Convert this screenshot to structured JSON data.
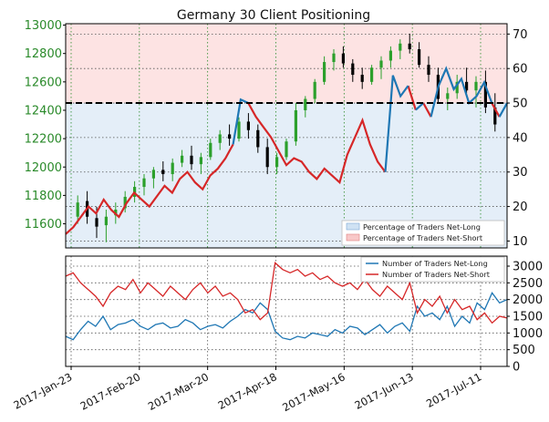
{
  "chart_data": [
    {
      "type": "candlestick-area",
      "title": "Germany 30 Client Positioning",
      "x_tick_labels": [
        "2017-Jan-23",
        "2017-Feb-20",
        "2017-Mar-20",
        "2017-Apr-18",
        "2017-May-16",
        "2017-Jun-13",
        "2017-Jul-11"
      ],
      "left_axis": {
        "ticks": [
          11600,
          11800,
          12000,
          12200,
          12400,
          12600,
          12800,
          13000
        ],
        "range": [
          11430,
          13010
        ],
        "color": "#2a8a2a"
      },
      "right_axis": {
        "ticks": [
          10,
          20,
          30,
          40,
          50,
          60,
          70
        ],
        "range": [
          8,
          73
        ]
      },
      "reference_line": 50,
      "legend": {
        "net_long": "Percentage of Traders Net-Long",
        "net_short": "Percentage of Traders Net-Short"
      },
      "colors": {
        "net_long": "#1f77b4",
        "net_short": "#d62728",
        "candle_up": "#2ca02c",
        "candle_down": "#000000"
      },
      "ohlc_samples": [
        [
          11650,
          11800,
          11600,
          11750
        ],
        [
          11760,
          11830,
          11600,
          11650
        ],
        [
          11640,
          11720,
          11500,
          11580
        ],
        [
          11590,
          11700,
          11470,
          11650
        ],
        [
          11660,
          11750,
          11600,
          11700
        ],
        [
          11710,
          11830,
          11680,
          11790
        ],
        [
          11790,
          11900,
          11750,
          11860
        ],
        [
          11860,
          11950,
          11800,
          11920
        ],
        [
          11920,
          12000,
          11850,
          11980
        ],
        [
          11980,
          12040,
          11900,
          11950
        ],
        [
          11950,
          12060,
          11900,
          12030
        ],
        [
          12030,
          12120,
          12000,
          12080
        ],
        [
          12080,
          12150,
          11980,
          12020
        ],
        [
          12020,
          12100,
          11950,
          12070
        ],
        [
          12070,
          12200,
          12050,
          12170
        ],
        [
          12170,
          12260,
          12120,
          12230
        ],
        [
          12230,
          12300,
          12150,
          12200
        ],
        [
          12200,
          12350,
          12180,
          12320
        ],
        [
          12320,
          12380,
          12200,
          12260
        ],
        [
          12260,
          12300,
          12100,
          12140
        ],
        [
          12140,
          12200,
          11950,
          12000
        ],
        [
          12000,
          12100,
          11950,
          12070
        ],
        [
          12070,
          12200,
          12050,
          12180
        ],
        [
          12180,
          12450,
          12150,
          12400
        ],
        [
          12400,
          12500,
          12350,
          12480
        ],
        [
          12480,
          12620,
          12450,
          12600
        ],
        [
          12600,
          12780,
          12580,
          12740
        ],
        [
          12740,
          12830,
          12680,
          12800
        ],
        [
          12800,
          12850,
          12700,
          12730
        ],
        [
          12730,
          12760,
          12600,
          12650
        ],
        [
          12650,
          12700,
          12550,
          12600
        ],
        [
          12600,
          12720,
          12580,
          12700
        ],
        [
          12700,
          12780,
          12620,
          12750
        ],
        [
          12750,
          12850,
          12700,
          12820
        ],
        [
          12820,
          12900,
          12760,
          12870
        ],
        [
          12870,
          12940,
          12800,
          12830
        ],
        [
          12830,
          12880,
          12700,
          12720
        ],
        [
          12720,
          12780,
          12600,
          12650
        ],
        [
          12650,
          12700,
          12450,
          12480
        ],
        [
          12480,
          12560,
          12400,
          12520
        ],
        [
          12520,
          12650,
          12480,
          12600
        ],
        [
          12600,
          12700,
          12520,
          12540
        ],
        [
          12540,
          12640,
          12420,
          12600
        ],
        [
          12600,
          12680,
          12380,
          12420
        ],
        [
          12420,
          12520,
          12250,
          12300
        ]
      ],
      "net_long_samples": [
        12,
        14,
        17,
        20,
        18,
        22,
        19,
        17,
        21,
        24,
        22,
        20,
        23,
        26,
        24,
        28,
        30,
        27,
        25,
        29,
        31,
        34,
        38,
        51,
        50,
        46,
        43,
        40,
        36,
        32,
        34,
        33,
        30,
        28,
        31,
        29,
        27,
        35,
        40,
        45,
        38,
        33,
        30,
        58,
        52,
        55,
        48,
        50,
        46,
        55,
        60,
        54,
        57,
        50,
        52,
        56,
        50,
        46,
        50
      ]
    },
    {
      "type": "line",
      "x_tick_labels": [
        "2017-Jan-23",
        "2017-Feb-20",
        "2017-Mar-20",
        "2017-Apr-18",
        "2017-May-16",
        "2017-Jun-13",
        "2017-Jul-11"
      ],
      "y_axis": {
        "ticks": [
          0,
          500,
          1000,
          1500,
          2000,
          2500,
          3000
        ],
        "range": [
          0,
          3300
        ]
      },
      "legend": {
        "net_long": "Number of Traders Net-Long",
        "net_short": "Number of Traders Net-Short"
      },
      "series": [
        {
          "name": "Number of Traders Net-Long",
          "color": "#1f77b4",
          "values": [
            900,
            800,
            1100,
            1350,
            1200,
            1500,
            1100,
            1250,
            1300,
            1400,
            1200,
            1100,
            1250,
            1300,
            1150,
            1200,
            1400,
            1300,
            1100,
            1200,
            1250,
            1150,
            1350,
            1500,
            1700,
            1600,
            1900,
            1700,
            1050,
            850,
            800,
            900,
            850,
            1000,
            950,
            900,
            1100,
            1000,
            1200,
            1150,
            950,
            1100,
            1250,
            1000,
            1200,
            1300,
            1050,
            1800,
            1500,
            1600,
            1400,
            1800,
            1200,
            1500,
            1300,
            1900,
            1700,
            2200,
            1900,
            2000
          ]
        },
        {
          "name": "Number of Traders Net-Short",
          "color": "#d62728",
          "values": [
            2700,
            2800,
            2500,
            2300,
            2100,
            1800,
            2200,
            2400,
            2300,
            2600,
            2200,
            2500,
            2300,
            2100,
            2400,
            2200,
            2000,
            2300,
            2500,
            2200,
            2400,
            2100,
            2200,
            2000,
            1600,
            1700,
            1400,
            1600,
            3100,
            2900,
            2800,
            2900,
            2700,
            2800,
            2600,
            2700,
            2500,
            2400,
            2500,
            2300,
            2600,
            2300,
            2100,
            2400,
            2200,
            2000,
            2500,
            1600,
            2000,
            1800,
            2100,
            1600,
            2000,
            1700,
            1800,
            1400,
            1600,
            1300,
            1500,
            1450
          ]
        }
      ]
    }
  ]
}
